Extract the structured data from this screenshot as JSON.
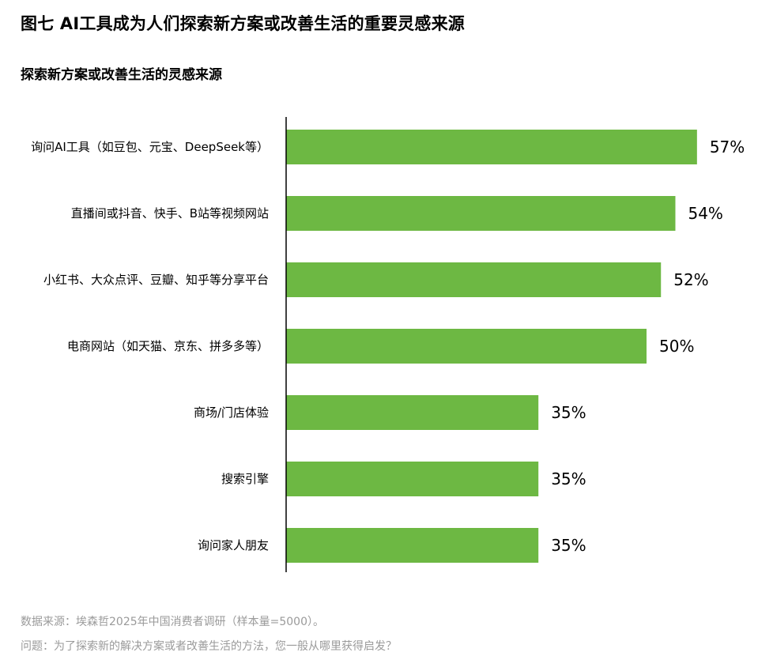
{
  "figure": {
    "title": "图七  AI工具成为人们探索新方案或改善生活的重要灵感来源"
  },
  "chart_data": {
    "type": "bar",
    "orientation": "horizontal",
    "title": "探索新方案或改善生活的灵感来源",
    "categories": [
      "询问AI工具（如豆包、元宝、DeepSeek等）",
      "直播间或抖音、快手、B站等视频网站",
      "小红书、大众点评、豆瓣、知乎等分享平台",
      "电商网站（如天猫、京东、拼多多等）",
      "商场/门店体验",
      "搜索引擎",
      "询问家人朋友"
    ],
    "values": [
      57,
      54,
      52,
      50,
      35,
      35,
      35
    ],
    "value_labels": [
      "57%",
      "54%",
      "52%",
      "50%",
      "35%",
      "35%",
      "35%"
    ],
    "unit": "%",
    "xlim": [
      0,
      60
    ],
    "bar_color": "#6db843",
    "axis_color": "#000000",
    "grid": false,
    "legend": "none"
  },
  "footnotes": {
    "source": "数据来源：埃森哲2025年中国消费者调研（样本量=5000）。",
    "question": "问题：为了探索新的解决方案或者改善生活的方法，您一般从哪里获得启发？"
  }
}
